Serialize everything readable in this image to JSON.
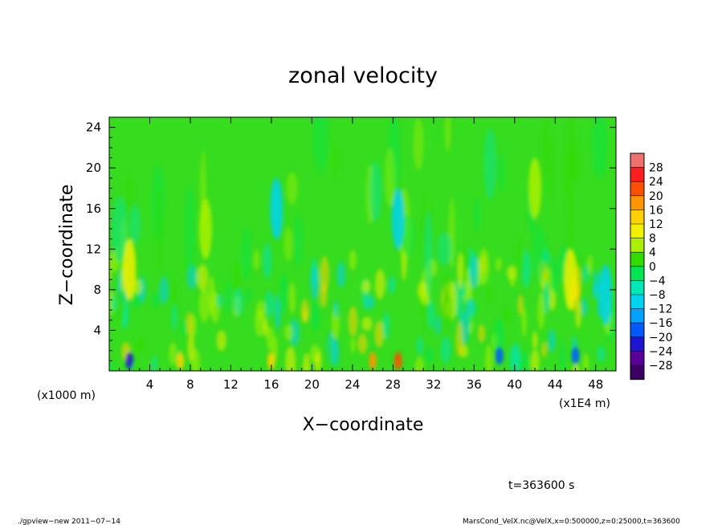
{
  "chart_data": {
    "type": "heatmap",
    "title": "zonal velocity",
    "xlabel": "X−coordinate",
    "ylabel": "Z−coordinate",
    "y_unit_note": "(x1000 m)",
    "x_unit_note": "(x1E4 m)",
    "xlim": [
      0,
      50
    ],
    "ylim": [
      0,
      25
    ],
    "x_ticks": [
      4,
      8,
      12,
      16,
      20,
      24,
      28,
      32,
      36,
      40,
      44,
      48
    ],
    "x_tick_labels": [
      "4",
      "8",
      "12",
      "16",
      "20",
      "24",
      "28",
      "32",
      "36",
      "40",
      "44",
      "48"
    ],
    "y_ticks": [
      4,
      8,
      12,
      16,
      20,
      24
    ],
    "y_tick_labels": [
      "4",
      "8",
      "12",
      "16",
      "20",
      "24"
    ],
    "colorbar": {
      "levels": [
        28,
        24,
        20,
        16,
        12,
        8,
        4,
        0,
        -4,
        -8,
        -12,
        -16,
        -20,
        -24,
        -28
      ],
      "labels": [
        "28",
        "24",
        "20",
        "16",
        "12",
        "8",
        "4",
        "0",
        "−4",
        "−8",
        "−12",
        "−16",
        "−20",
        "−24",
        "−28"
      ],
      "colors": [
        "#f07070",
        "#ff1e1e",
        "#ff5000",
        "#ff9600",
        "#ffd200",
        "#f0f000",
        "#aaf000",
        "#32dc00",
        "#00e650",
        "#00e6b4",
        "#00d2f0",
        "#00a0ff",
        "#005aff",
        "#1e14d2",
        "#5a0096",
        "#3c0064"
      ]
    },
    "features": [
      {
        "x": 28.5,
        "z": 15,
        "value": -11
      },
      {
        "x": 16.5,
        "z": 16,
        "value": -9
      },
      {
        "x": 9.5,
        "z": 14,
        "value": 7
      },
      {
        "x": 42,
        "z": 18,
        "value": 6
      },
      {
        "x": 28.5,
        "z": 1,
        "value": 22
      },
      {
        "x": 26,
        "z": 1,
        "value": 18
      },
      {
        "x": 16,
        "z": 1,
        "value": 14
      },
      {
        "x": 7,
        "z": 1,
        "value": 14
      },
      {
        "x": 2,
        "z": 1,
        "value": -22
      },
      {
        "x": 38.5,
        "z": 1.5,
        "value": -18
      },
      {
        "x": 46,
        "z": 1.5,
        "value": -18
      },
      {
        "x": 45.5,
        "z": 9,
        "value": 10
      },
      {
        "x": 2,
        "z": 10,
        "value": 8
      },
      {
        "x": 49,
        "z": 7.5,
        "value": -12
      }
    ]
  },
  "time_label": "t=363600 s",
  "footer": {
    "left": "./gpview−new   2011−07−14",
    "right": "MarsCond_VelX.nc@VelX,x=0:500000,z=0:25000,t=363600"
  }
}
